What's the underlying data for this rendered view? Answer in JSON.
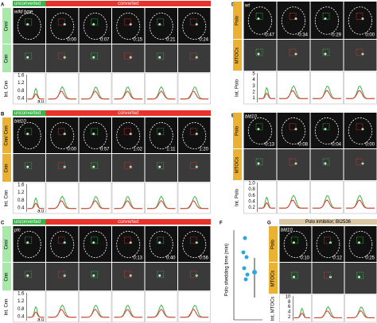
{
  "panels": {
    "a": {
      "letter": "A",
      "header_left": "unconverted",
      "header_right": "converted",
      "label": "wild type",
      "row_labels": [
        "Cnn/",
        "Cnn",
        "Int. Cnn"
      ],
      "times": [
        "0:00",
        "0:07",
        "0:15",
        "0:21",
        "0:24"
      ],
      "yticks": [
        "1.6",
        "1.2",
        "0.8",
        "0.4"
      ],
      "unit": "a.u"
    },
    "b": {
      "letter": "B",
      "header_left": "unconverted",
      "header_right": "converted",
      "label": "bld10",
      "row_labels": [
        "Cnn/ Cnn",
        "Cnn",
        "Int. Cnn"
      ],
      "times": [
        "0:00",
        "0:57",
        "1:02",
        "1:11",
        "1:20"
      ],
      "yticks": [
        "1.6",
        "1.2",
        "0.8",
        "0.4"
      ],
      "unit": "a.u"
    },
    "c": {
      "letter": "C",
      "header_left": "unconverted",
      "header_right": "converted",
      "label": "ptc",
      "row_labels": [
        "Cnn/",
        "Cnn",
        "Int. Cnn"
      ],
      "times": [
        "0:13",
        "0:40",
        "0:56"
      ],
      "yticks": [
        "1.6",
        "1.2",
        "0.8",
        "0.4"
      ],
      "unit": "a.u"
    },
    "d": {
      "letter": "D",
      "label": "wt",
      "row_labels": [
        "Polo",
        "MTOCs",
        "Int. Polo"
      ],
      "times": [
        "-0:47",
        "-0:34",
        "-0:29",
        "0:00"
      ],
      "yticks": [
        "5",
        "4",
        "3",
        "2",
        "1"
      ]
    },
    "e": {
      "letter": "E",
      "label": "bld10",
      "row_labels": [
        "Polo",
        "MTOCs",
        "Int. Polo"
      ],
      "times": [
        "-0:13",
        "-0:08",
        "-0:04",
        "0:00"
      ],
      "yticks": [
        "1.0",
        "0.8",
        "0.6",
        "0.4",
        "0.2"
      ]
    },
    "f": {
      "letter": "F",
      "axis_label": "Polo shedding time (min)"
    },
    "g": {
      "letter": "G",
      "header": "Polo inhibitor; BI2536",
      "label": "bld10",
      "row_labels": [
        "Polo",
        "MTOCs",
        "Int. MTOCs"
      ],
      "times": [
        "0:10",
        "0:12",
        "0:25"
      ],
      "yticks": [
        "10",
        "8",
        "6",
        "4",
        "2"
      ]
    }
  }
}
